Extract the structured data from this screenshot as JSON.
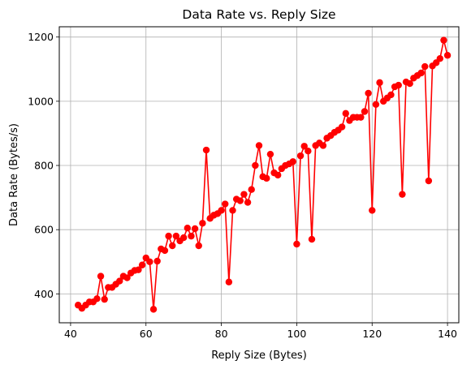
{
  "chart_data": {
    "type": "line",
    "title": "Data Rate vs. Reply Size",
    "xlabel": "Reply Size (Bytes)",
    "ylabel": "Data Rate (Bytes/s)",
    "xlim": [
      37,
      143
    ],
    "ylim": [
      310,
      1232
    ],
    "xticks": [
      40,
      60,
      80,
      100,
      120,
      140
    ],
    "yticks": [
      400,
      600,
      800,
      1000,
      1200
    ],
    "grid": true,
    "marker": "circle",
    "color": "#ff0000",
    "series": [
      {
        "x": [
          42,
          43,
          44,
          45,
          46,
          47,
          48,
          49,
          50,
          51,
          52,
          53,
          54,
          55,
          56,
          57,
          58,
          59,
          60,
          61,
          62,
          63,
          64,
          65,
          66,
          67,
          68,
          69,
          70,
          71,
          72,
          73,
          74,
          75,
          76,
          77,
          78,
          79,
          80,
          81,
          82,
          83,
          84,
          85,
          86,
          87,
          88,
          89,
          90,
          91,
          92,
          93,
          94,
          95,
          96,
          97,
          98,
          99,
          100,
          101,
          102,
          103,
          104,
          105,
          106,
          107,
          108,
          109,
          110,
          111,
          112,
          113,
          114,
          115,
          116,
          117,
          118,
          119,
          120,
          121,
          122,
          123,
          124,
          125,
          126,
          127,
          128,
          129,
          130,
          131,
          132,
          133,
          134,
          135,
          136,
          137,
          138,
          139,
          140
        ],
        "y": [
          365,
          355,
          365,
          375,
          375,
          385,
          455,
          383,
          420,
          420,
          430,
          440,
          455,
          450,
          465,
          473,
          475,
          490,
          512,
          500,
          352,
          502,
          540,
          535,
          580,
          550,
          580,
          565,
          575,
          605,
          580,
          603,
          550,
          620,
          848,
          635,
          645,
          650,
          660,
          680,
          437,
          660,
          695,
          690,
          710,
          685,
          725,
          800,
          862,
          765,
          760,
          835,
          777,
          770,
          790,
          800,
          805,
          812,
          555,
          830,
          860,
          845,
          570,
          862,
          870,
          862,
          885,
          893,
          903,
          910,
          920,
          962,
          940,
          950,
          950,
          950,
          968,
          1025,
          660,
          990,
          1058,
          1000,
          1010,
          1020,
          1045,
          1050,
          710,
          1060,
          1055,
          1072,
          1080,
          1088,
          1108,
          752,
          1110,
          1120,
          1133,
          1190,
          1143
        ]
      }
    ]
  }
}
